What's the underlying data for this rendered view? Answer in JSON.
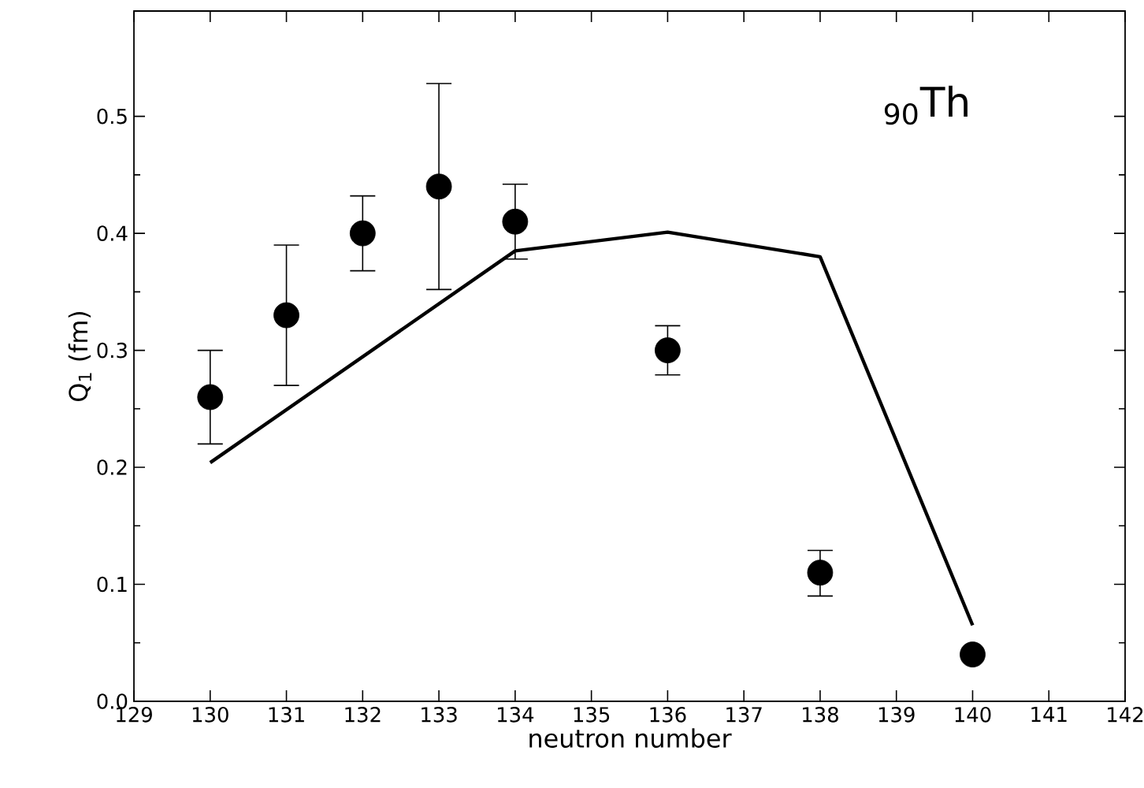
{
  "chart_data": {
    "type": "scatter",
    "xlabel": "neutron number",
    "ylabel": "Q$_{1}$ (fm)",
    "annotations": [
      "$_{90}$Th"
    ],
    "xlim": [
      129,
      142
    ],
    "xticks": [
      129,
      130,
      131,
      132,
      133,
      134,
      135,
      136,
      137,
      138,
      139,
      140,
      141,
      142
    ],
    "ylim": [
      0,
      0.59
    ],
    "yticks": [
      {
        "value": 0,
        "label": "0.0"
      },
      0.1,
      0.2,
      0.3,
      0.4,
      0.5
    ],
    "grid": false,
    "series": [
      {
        "type": "scatter",
        "marker": "circle",
        "color": "#000000",
        "x": [
          130,
          131,
          132,
          133,
          134,
          136,
          138,
          140
        ],
        "values": [
          0.26,
          0.33,
          0.4,
          0.44,
          0.41,
          0.3,
          0.11,
          0.04
        ],
        "errors": [
          [
            0.22,
            0.3
          ],
          [
            0.27,
            0.39
          ],
          [
            0.368,
            0.432
          ],
          [
            0.352,
            0.528
          ],
          [
            0.378,
            0.442
          ],
          [
            0.279,
            0.321
          ],
          [
            0.09,
            0.129
          ],
          null
        ]
      },
      {
        "type": "line",
        "marker": "none",
        "line_style": "solid",
        "color": "#000000",
        "x": [
          130,
          134,
          136,
          138,
          140
        ],
        "values": [
          0.204,
          0.385,
          0.401,
          0.38,
          0.065
        ]
      }
    ]
  }
}
